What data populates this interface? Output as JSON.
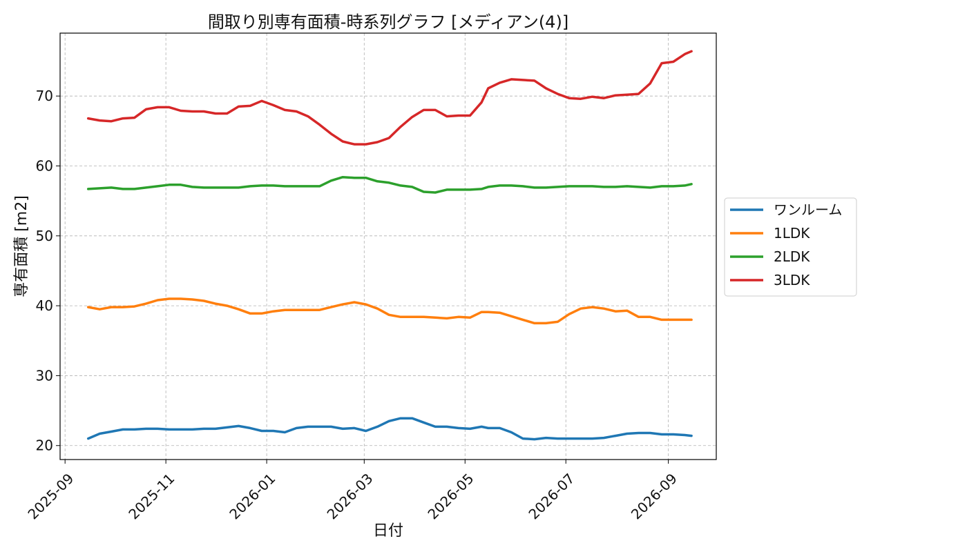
{
  "chart_data": {
    "type": "line",
    "title": "間取り別専有面積-時系列グラフ [メディアン(4)]",
    "xlabel": "日付",
    "ylabel": "専有面積 [m2]",
    "x_tick_labels": [
      "2025-09",
      "2025-11",
      "2026-01",
      "2026-03",
      "2026-05",
      "2026-07",
      "2026-09"
    ],
    "y_tick_labels": [
      "20",
      "30",
      "40",
      "50",
      "60",
      "70"
    ],
    "y_ticks": [
      20,
      30,
      40,
      50,
      60,
      70
    ],
    "x_ticks": [
      "2025-09-01",
      "2025-11-01",
      "2026-01-01",
      "2026-03-01",
      "2026-05-01",
      "2026-07-01",
      "2026-09-01"
    ],
    "xlim": [
      "2025-08-29",
      "2026-09-30"
    ],
    "ylim": [
      18.0,
      79.0
    ],
    "grid": true,
    "legend_position": "right",
    "x": [
      "2025-09-15",
      "2025-09-22",
      "2025-09-29",
      "2025-10-06",
      "2025-10-13",
      "2025-10-20",
      "2025-10-27",
      "2025-11-03",
      "2025-11-10",
      "2025-11-17",
      "2025-11-24",
      "2025-12-01",
      "2025-12-08",
      "2025-12-15",
      "2025-12-22",
      "2025-12-29",
      "2026-01-05",
      "2026-01-12",
      "2026-01-19",
      "2026-01-26",
      "2026-02-02",
      "2026-02-09",
      "2026-02-16",
      "2026-02-23",
      "2026-03-02",
      "2026-03-09",
      "2026-03-16",
      "2026-03-23",
      "2026-03-30",
      "2026-04-06",
      "2026-04-13",
      "2026-04-20",
      "2026-04-27",
      "2026-05-04",
      "2026-05-11",
      "2026-05-15",
      "2026-05-22",
      "2026-05-29",
      "2026-06-05",
      "2026-06-12",
      "2026-06-19",
      "2026-06-26",
      "2026-07-03",
      "2026-07-10",
      "2026-07-17",
      "2026-07-24",
      "2026-07-31",
      "2026-08-07",
      "2026-08-14",
      "2026-08-21",
      "2026-08-28",
      "2026-09-04",
      "2026-09-11",
      "2026-09-15"
    ],
    "series": [
      {
        "name": "ワンルーム",
        "color": "#1f77b4",
        "values": [
          21.0,
          21.7,
          22.0,
          22.3,
          22.3,
          22.4,
          22.4,
          22.3,
          22.3,
          22.3,
          22.4,
          22.4,
          22.6,
          22.8,
          22.5,
          22.1,
          22.1,
          21.9,
          22.5,
          22.7,
          22.7,
          22.7,
          22.4,
          22.5,
          22.1,
          22.7,
          23.5,
          23.9,
          23.9,
          23.3,
          22.7,
          22.7,
          22.5,
          22.4,
          22.7,
          22.5,
          22.5,
          21.9,
          21.0,
          20.9,
          21.1,
          21.0,
          21.0,
          21.0,
          21.0,
          21.1,
          21.4,
          21.7,
          21.8,
          21.8,
          21.6,
          21.6,
          21.5,
          21.4
        ]
      },
      {
        "name": "1LDK",
        "color": "#ff7f0e",
        "values": [
          39.8,
          39.5,
          39.8,
          39.8,
          39.9,
          40.3,
          40.8,
          41.0,
          41.0,
          40.9,
          40.7,
          40.3,
          40.0,
          39.5,
          38.9,
          38.9,
          39.2,
          39.4,
          39.4,
          39.4,
          39.4,
          39.8,
          40.2,
          40.5,
          40.2,
          39.6,
          38.7,
          38.4,
          38.4,
          38.4,
          38.3,
          38.2,
          38.4,
          38.3,
          39.1,
          39.1,
          39.0,
          38.5,
          38.0,
          37.5,
          37.5,
          37.7,
          38.8,
          39.6,
          39.8,
          39.6,
          39.2,
          39.3,
          38.4,
          38.4,
          38.0,
          38.0,
          38.0,
          38.0
        ]
      },
      {
        "name": "2LDK",
        "color": "#2ca02c",
        "values": [
          56.7,
          56.8,
          56.9,
          56.7,
          56.7,
          56.9,
          57.1,
          57.3,
          57.3,
          57.0,
          56.9,
          56.9,
          56.9,
          56.9,
          57.1,
          57.2,
          57.2,
          57.1,
          57.1,
          57.1,
          57.1,
          57.9,
          58.4,
          58.3,
          58.3,
          57.8,
          57.6,
          57.2,
          57.0,
          56.3,
          56.2,
          56.6,
          56.6,
          56.6,
          56.7,
          57.0,
          57.2,
          57.2,
          57.1,
          56.9,
          56.9,
          57.0,
          57.1,
          57.1,
          57.1,
          57.0,
          57.0,
          57.1,
          57.0,
          56.9,
          57.1,
          57.1,
          57.2,
          57.4
        ]
      },
      {
        "name": "3LDK",
        "color": "#d62728",
        "values": [
          66.8,
          66.5,
          66.4,
          66.8,
          66.9,
          68.1,
          68.4,
          68.4,
          67.9,
          67.8,
          67.8,
          67.5,
          67.5,
          68.5,
          68.6,
          69.3,
          68.7,
          68.0,
          67.8,
          67.1,
          65.9,
          64.6,
          63.5,
          63.1,
          63.1,
          63.4,
          64.0,
          65.6,
          67.0,
          68.0,
          68.0,
          67.1,
          67.2,
          67.2,
          69.1,
          71.1,
          71.9,
          72.4,
          72.3,
          72.2,
          71.1,
          70.3,
          69.7,
          69.6,
          69.9,
          69.7,
          70.1,
          70.2,
          70.3,
          71.8,
          74.7,
          74.9,
          76.0,
          76.4
        ]
      }
    ]
  }
}
